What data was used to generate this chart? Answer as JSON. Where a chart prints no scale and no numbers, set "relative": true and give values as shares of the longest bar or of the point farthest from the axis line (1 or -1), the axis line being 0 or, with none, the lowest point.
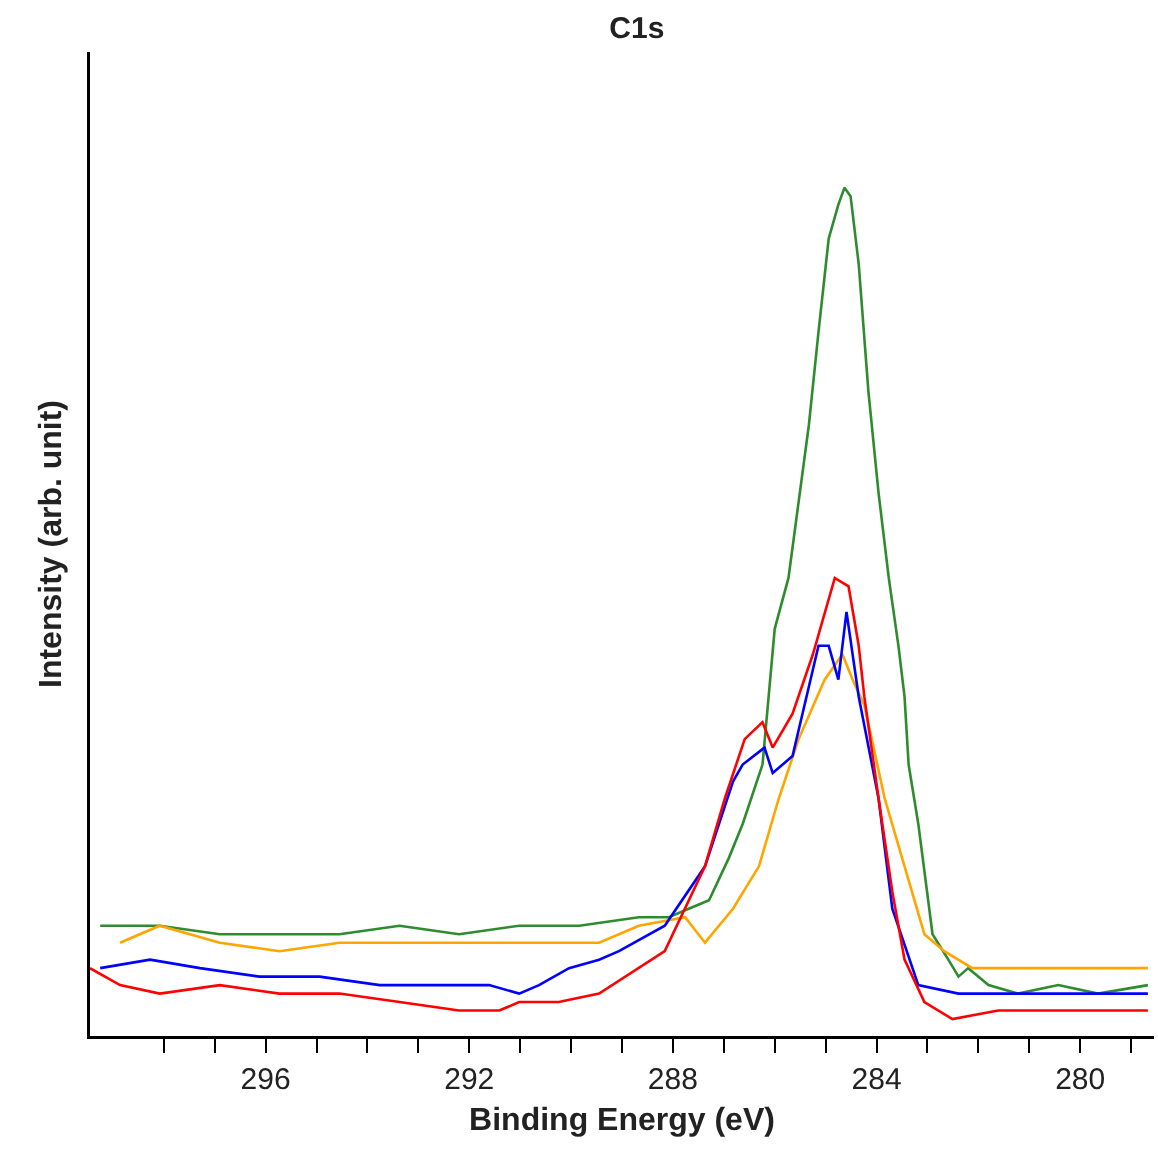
{
  "chart_data": {
    "type": "line",
    "title": "C1s",
    "xlabel": "Binding Energy (eV)",
    "ylabel": "Intensity (arb. unit)",
    "relative": true,
    "xlim": [
      299.45,
      278.55
    ],
    "xticks": [
      {
        "value": 298,
        "label": null
      },
      {
        "value": 297,
        "label": null
      },
      296,
      {
        "value": 295,
        "label": null
      },
      {
        "value": 294,
        "label": null
      },
      {
        "value": 293,
        "label": null
      },
      292,
      {
        "value": 291,
        "label": null
      },
      {
        "value": 290,
        "label": null
      },
      {
        "value": 289,
        "label": null
      },
      288,
      {
        "value": 287,
        "label": null
      },
      {
        "value": 286,
        "label": null
      },
      {
        "value": 285,
        "label": null
      },
      284,
      {
        "value": 283,
        "label": null
      },
      {
        "value": 282,
        "label": null
      },
      {
        "value": 281,
        "label": null
      },
      280,
      {
        "value": 279,
        "label": null
      }
    ],
    "line_style": "solid",
    "series": [
      {
        "color": "#2e8b2e",
        "x": [
          299.25,
          298.08,
          296.9,
          295.73,
          294.55,
          293.37,
          292.2,
          291.02,
          289.84,
          288.67,
          288.08,
          287.69,
          287.29,
          286.9,
          286.63,
          286.24,
          286.12,
          286,
          285.73,
          285.53,
          285.33,
          285.14,
          284.94,
          284.75,
          284.63,
          284.51,
          284.35,
          284.16,
          283.96,
          283.76,
          283.57,
          283.45,
          283.37,
          283.18,
          282.9,
          282.59,
          282.39,
          282.2,
          281.8,
          281.22,
          280.43,
          279.65,
          278.67
        ],
        "values": [
          0.13,
          0.13,
          0.12,
          0.12,
          0.12,
          0.13,
          0.12,
          0.13,
          0.13,
          0.14,
          0.14,
          0.15,
          0.16,
          0.21,
          0.25,
          0.32,
          0.4,
          0.48,
          0.54,
          0.63,
          0.72,
          0.83,
          0.94,
          0.98,
          1.0,
          0.99,
          0.91,
          0.76,
          0.64,
          0.54,
          0.46,
          0.4,
          0.32,
          0.25,
          0.12,
          0.09,
          0.07,
          0.08,
          0.06,
          0.05,
          0.06,
          0.05,
          0.06
        ]
      },
      {
        "color": "#ffa500",
        "x": [
          298.86,
          298.08,
          296.9,
          295.73,
          294.55,
          293.37,
          292.2,
          291.02,
          290.24,
          289.45,
          288.67,
          287.76,
          287.37,
          286.82,
          286.31,
          285.92,
          285.53,
          285.02,
          284.67,
          284.47,
          284.24,
          283.84,
          283.45,
          283.06,
          282.67,
          282.12,
          281.22,
          280.43,
          279.65,
          278.67
        ],
        "values": [
          0.11,
          0.13,
          0.11,
          0.1,
          0.11,
          0.11,
          0.11,
          0.11,
          0.11,
          0.11,
          0.13,
          0.14,
          0.11,
          0.15,
          0.2,
          0.28,
          0.35,
          0.42,
          0.45,
          0.42,
          0.39,
          0.28,
          0.2,
          0.12,
          0.1,
          0.08,
          0.08,
          0.08,
          0.08,
          0.08
        ]
      },
      {
        "color": "#0000ff",
        "x": [
          299.25,
          298.27,
          297.29,
          296.12,
          294.94,
          293.76,
          292.59,
          291.61,
          291.02,
          290.63,
          290.04,
          289.45,
          289.06,
          288.16,
          287.37,
          286.82,
          286.63,
          286.2,
          286.04,
          285.65,
          285.14,
          284.94,
          284.75,
          284.59,
          284.35,
          283.96,
          283.69,
          283.18,
          282.39,
          281.61,
          280.43,
          279.25,
          278.67
        ],
        "values": [
          0.08,
          0.09,
          0.08,
          0.07,
          0.07,
          0.06,
          0.06,
          0.06,
          0.05,
          0.06,
          0.08,
          0.09,
          0.1,
          0.13,
          0.2,
          0.3,
          0.32,
          0.34,
          0.31,
          0.33,
          0.46,
          0.46,
          0.42,
          0.5,
          0.4,
          0.28,
          0.15,
          0.06,
          0.05,
          0.05,
          0.05,
          0.05,
          0.05
        ]
      },
      {
        "color": "#ff0000",
        "x": [
          299.45,
          298.86,
          298.08,
          296.9,
          295.73,
          294.55,
          293.37,
          292.2,
          291.41,
          291.02,
          290.24,
          289.45,
          288.16,
          287.37,
          286.98,
          286.59,
          286.24,
          286.04,
          285.65,
          285.25,
          284.82,
          284.55,
          284.35,
          284.24,
          283.96,
          283.69,
          283.45,
          283.06,
          282.51,
          281.61,
          280.43,
          279.25,
          278.67
        ],
        "values": [
          0.08,
          0.06,
          0.05,
          0.06,
          0.05,
          0.05,
          0.04,
          0.03,
          0.03,
          0.04,
          0.04,
          0.05,
          0.1,
          0.2,
          0.28,
          0.35,
          0.37,
          0.34,
          0.38,
          0.45,
          0.54,
          0.53,
          0.46,
          0.4,
          0.28,
          0.17,
          0.09,
          0.04,
          0.02,
          0.03,
          0.03,
          0.03,
          0.03
        ]
      }
    ]
  }
}
